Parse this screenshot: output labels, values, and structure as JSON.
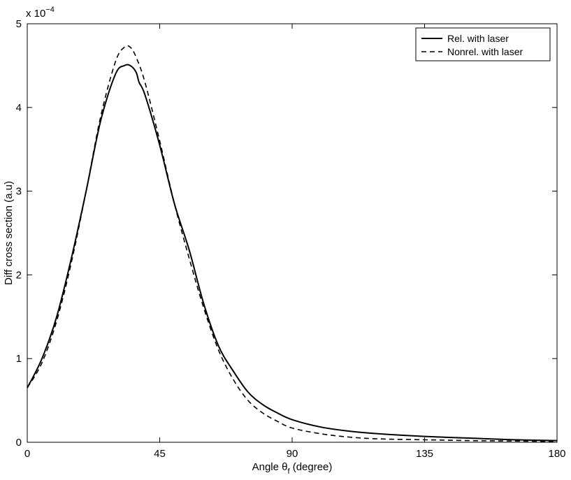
{
  "chart_data": {
    "type": "line",
    "title": "",
    "xlabel_prefix": "Angle θ",
    "xlabel_sub": "f",
    "xlabel_suffix": " (degree)",
    "ylabel": "Diff cross section (a.u)",
    "y_multiplier_base": "x 10",
    "y_multiplier_exp": "−4",
    "xlim": [
      0,
      180
    ],
    "ylim": [
      0,
      5
    ],
    "xticks": [
      0,
      45,
      90,
      135,
      180
    ],
    "yticks": [
      0,
      1,
      2,
      3,
      4,
      5
    ],
    "grid": false,
    "legend_position": "top-right",
    "series": [
      {
        "name": "Rel. with laser",
        "style": "solid",
        "color": "#000000",
        "x": [
          0,
          5,
          10,
          15,
          20,
          25,
          30,
          33,
          35,
          37,
          38,
          40,
          45,
          50,
          55,
          60,
          65,
          70,
          75,
          80,
          85,
          90,
          100,
          110,
          120,
          135,
          150,
          165,
          180
        ],
        "y": [
          0.65,
          1.0,
          1.5,
          2.2,
          3.0,
          3.85,
          4.4,
          4.5,
          4.5,
          4.42,
          4.3,
          4.15,
          3.55,
          2.85,
          2.3,
          1.65,
          1.15,
          0.85,
          0.6,
          0.45,
          0.35,
          0.27,
          0.18,
          0.13,
          0.1,
          0.07,
          0.05,
          0.03,
          0.02
        ]
      },
      {
        "name": "Nonrel. with laser",
        "style": "dashed",
        "color": "#000000",
        "x": [
          0,
          5,
          10,
          15,
          20,
          25,
          30,
          33,
          35,
          37,
          40,
          45,
          50,
          55,
          60,
          65,
          70,
          75,
          80,
          85,
          90,
          100,
          110,
          120,
          135,
          150,
          165,
          180
        ],
        "y": [
          0.65,
          0.95,
          1.45,
          2.15,
          3.0,
          3.9,
          4.55,
          4.72,
          4.72,
          4.6,
          4.3,
          3.6,
          2.85,
          2.2,
          1.6,
          1.1,
          0.75,
          0.5,
          0.35,
          0.25,
          0.17,
          0.1,
          0.06,
          0.04,
          0.03,
          0.02,
          0.015,
          0.01
        ]
      }
    ]
  }
}
